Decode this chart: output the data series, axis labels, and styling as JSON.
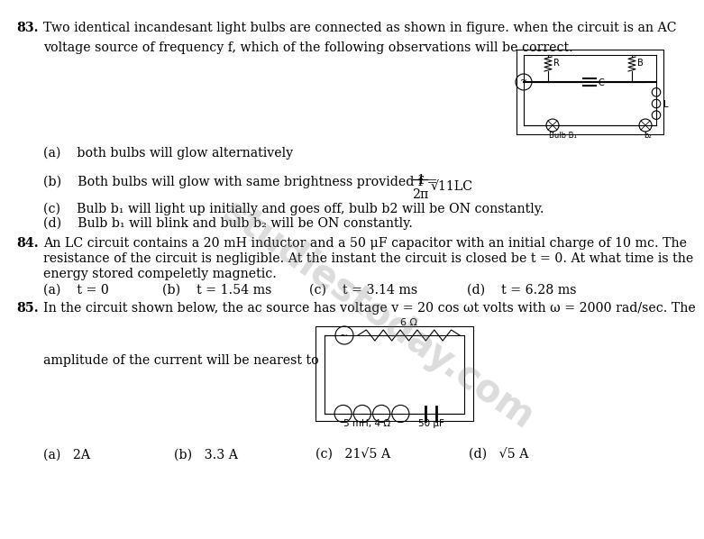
{
  "bg_color": "#ffffff",
  "text_color": "#000000",
  "font_size": 10.2,
  "font_family": "DejaVu Serif",
  "q83_num": "83.",
  "q83_line1": "Two identical incandesant light bulbs are connected as shown in figure. when the circuit is an AC",
  "q83_line2": "voltage source of frequency f, which of the following observations will be correct.",
  "q83_a": "(a)    both bulbs will glow alternatively",
  "q83_b_pre": "(b)    Both bulbs will glow with same brightness provided f =",
  "q83_c": "(c)    Bulb b₁ will light up initially and goes off, bulb b2 will be ON constantly.",
  "q83_d": "(d)    Bulb b₁ will blink and bulb b₂ will be ON constantly.",
  "q84_num": "84.",
  "q84_line1": "An LC circuit contains a 20 mH inductor and a 50 μF capacitor with an initial charge of 10 mc. The",
  "q84_line2": "resistance of the circuit is negligible. At the instant the circuit is closed be t = 0. At what time is the",
  "q84_line3": "energy stored compeletly magnetic.",
  "q84_a": "(a)    t = 0",
  "q84_b": "(b)    t = 1.54 ms",
  "q84_c": "(c)    t = 3.14 ms",
  "q84_d": "(d)    t = 6.28 ms",
  "q85_num": "85.",
  "q85_line1": "In the circuit shown below, the ac source has voltage v = 20 cos ωt volts with ω = 2000 rad/sec. The",
  "q85_line2": "amplitude of the current will be nearest to",
  "q85_a": "(a)   2A",
  "q85_b": "(b)   3.3 A",
  "q85_c": "(c)   21√5 A",
  "q85_d": "(d)   √5 A",
  "watermark": "studiestoday.com"
}
